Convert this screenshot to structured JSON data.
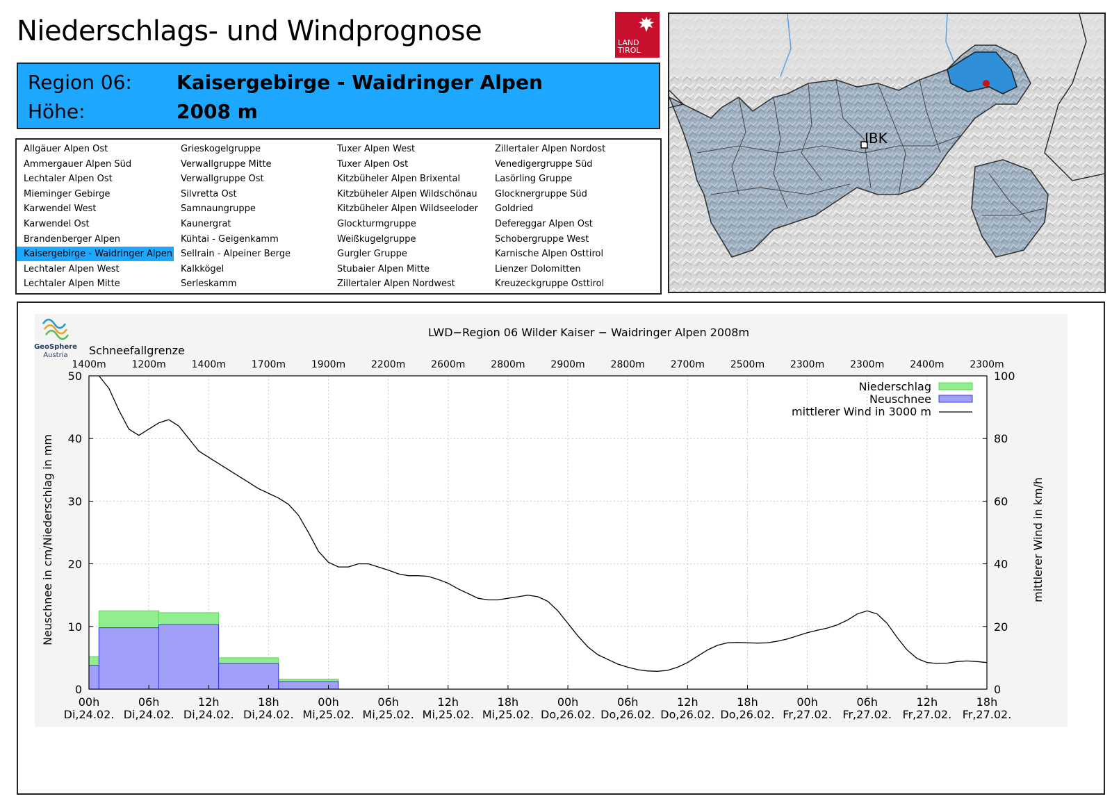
{
  "header": {
    "title": "Niederschlags- und Windprognose",
    "logo_text": [
      "LAND",
      "TIROL"
    ]
  },
  "region": {
    "region_label": "Region 06:",
    "region_value": "Kaisergebirge - Waidringer Alpen",
    "height_label": "Höhe:",
    "height_value": "2008 m"
  },
  "region_list": {
    "columns": [
      [
        "Allgäuer Alpen Ost",
        "Ammergauer Alpen Süd",
        "Lechtaler Alpen Ost",
        "Mieminger Gebirge",
        "Karwendel West",
        "Karwendel Ost",
        "Brandenberger Alpen",
        "Kaisergebirge - Waidringer Alpen",
        "Lechtaler Alpen West",
        "Lechtaler Alpen Mitte"
      ],
      [
        "Grieskogelgruppe",
        "Verwallgruppe Mitte",
        "Verwallgruppe Ost",
        "Silvretta Ost",
        "Samnaungruppe",
        "Kaunergrat",
        "Kühtai - Geigenkamm",
        "Sellrain - Alpeiner Berge",
        "Kalkkögel",
        "Serleskamm"
      ],
      [
        "Tuxer Alpen West",
        "Tuxer Alpen Ost",
        "Kitzbüheler Alpen Brixental",
        "Kitzbüheler Alpen Wildschönau",
        "Kitzbüheler Alpen Wildseeloder",
        "Glockturmgruppe",
        "Weißkugelgruppe",
        "Gurgler Gruppe",
        "Stubaier Alpen Mitte",
        "Zillertaler Alpen Nordwest"
      ],
      [
        "Zillertaler Alpen Nordost",
        "Venedigergruppe Süd",
        "Lasörling Gruppe",
        "Glocknergruppe Süd",
        "Goldried",
        "Defereggar Alpen Ost",
        "Schobergruppe West",
        "Karnische Alpen Osttirol",
        "Lienzer Dolomitten",
        "Kreuzeckgruppe Osttirol"
      ]
    ],
    "selected": "Kaisergebirge - Waidringer Alpen"
  },
  "map": {
    "city_label": "IBK"
  },
  "chart_data": {
    "type": "bar",
    "title": "LWD−Region 06 Wilder Kaiser − Waidringer Alpen 2008m",
    "source": [
      "GeoSphere",
      "Austria"
    ],
    "ylabel": "Neuschnee in cm/Niederschlag in mm",
    "y2label": "mittlerer Wind in km/h",
    "ylim": [
      0,
      50
    ],
    "yticks": [
      0,
      10,
      20,
      30,
      40,
      50
    ],
    "y2lim": [
      0,
      100
    ],
    "y2ticks": [
      0,
      20,
      40,
      60,
      80,
      100
    ],
    "x_hours_range": [
      0,
      90
    ],
    "xticks": [
      {
        "h": 0,
        "time": "00h",
        "date": "Di,24.02."
      },
      {
        "h": 6,
        "time": "06h",
        "date": "Di,24.02."
      },
      {
        "h": 12,
        "time": "12h",
        "date": "Di,24.02."
      },
      {
        "h": 18,
        "time": "18h",
        "date": "Di,24.02."
      },
      {
        "h": 24,
        "time": "00h",
        "date": "Mi,25.02."
      },
      {
        "h": 30,
        "time": "06h",
        "date": "Mi,25.02."
      },
      {
        "h": 36,
        "time": "12h",
        "date": "Mi,25.02."
      },
      {
        "h": 42,
        "time": "18h",
        "date": "Mi,25.02."
      },
      {
        "h": 48,
        "time": "00h",
        "date": "Do,26.02."
      },
      {
        "h": 54,
        "time": "06h",
        "date": "Do,26.02."
      },
      {
        "h": 60,
        "time": "12h",
        "date": "Do,26.02."
      },
      {
        "h": 66,
        "time": "18h",
        "date": "Do,26.02."
      },
      {
        "h": 72,
        "time": "00h",
        "date": "Fr,27.02."
      },
      {
        "h": 78,
        "time": "06h",
        "date": "Fr,27.02."
      },
      {
        "h": 84,
        "time": "12h",
        "date": "Fr,27.02."
      },
      {
        "h": 90,
        "time": "18h",
        "date": "Fr,27.02."
      }
    ],
    "snowline_title": "Schneefallgrenze",
    "snowline": [
      {
        "h": 0,
        "label": "1400m"
      },
      {
        "h": 6,
        "label": "1200m"
      },
      {
        "h": 12,
        "label": "1400m"
      },
      {
        "h": 18,
        "label": "1700m"
      },
      {
        "h": 24,
        "label": "1900m"
      },
      {
        "h": 30,
        "label": "2200m"
      },
      {
        "h": 36,
        "label": "2600m"
      },
      {
        "h": 42,
        "label": "2800m"
      },
      {
        "h": 48,
        "label": "2900m"
      },
      {
        "h": 54,
        "label": "2800m"
      },
      {
        "h": 60,
        "label": "2700m"
      },
      {
        "h": 66,
        "label": "2500m"
      },
      {
        "h": 72,
        "label": "2300m"
      },
      {
        "h": 78,
        "label": "2300m"
      },
      {
        "h": 84,
        "label": "2400m"
      },
      {
        "h": 90,
        "label": "2300m"
      }
    ],
    "series": [
      {
        "name": "Niederschlag",
        "color": "#90ee90",
        "bars": [
          {
            "start": 0,
            "end": 1,
            "value": 5.2
          },
          {
            "start": 1,
            "end": 7,
            "value": 12.5
          },
          {
            "start": 7,
            "end": 13,
            "value": 12.2
          },
          {
            "start": 13,
            "end": 19,
            "value": 5.0
          },
          {
            "start": 19,
            "end": 25,
            "value": 1.6
          }
        ]
      },
      {
        "name": "Neuschnee",
        "color": "#a0a0f8",
        "bars": [
          {
            "start": 0,
            "end": 1,
            "value": 3.8
          },
          {
            "start": 1,
            "end": 7,
            "value": 9.8
          },
          {
            "start": 7,
            "end": 13,
            "value": 10.3
          },
          {
            "start": 13,
            "end": 19,
            "value": 4.1
          },
          {
            "start": 19,
            "end": 25,
            "value": 1.2
          }
        ]
      },
      {
        "name": "mittlerer Wind in 3000 m",
        "color": "#000000",
        "axis": "right",
        "x": [
          1,
          2,
          3,
          4,
          5,
          6,
          7,
          8,
          9,
          10,
          11,
          12,
          13,
          14,
          15,
          16,
          17,
          18,
          19,
          20,
          21,
          22,
          23,
          24,
          25,
          26,
          27,
          28,
          29,
          30,
          31,
          32,
          33,
          34,
          35,
          36,
          37,
          38,
          39,
          40,
          41,
          42,
          43,
          44,
          45,
          46,
          47,
          48,
          49,
          50,
          51,
          52,
          53,
          54,
          55,
          56,
          57,
          58,
          59,
          60,
          61,
          62,
          63,
          64,
          65,
          66,
          67,
          68,
          69,
          70,
          71,
          72,
          73,
          74,
          75,
          76,
          77,
          78,
          79,
          80,
          81,
          82,
          83,
          84,
          85,
          86,
          87,
          88,
          89,
          90
        ],
        "y": [
          100,
          96,
          89,
          83,
          81,
          83,
          85,
          86,
          84,
          80,
          76,
          74,
          72,
          70,
          68,
          66,
          64,
          62.5,
          61,
          59,
          55.5,
          50,
          44,
          40.5,
          39,
          39,
          40,
          40,
          39,
          38,
          36.8,
          36.2,
          36.2,
          36,
          35,
          33.8,
          32,
          30.5,
          29,
          28.5,
          28.5,
          29,
          29.5,
          30,
          29.5,
          28,
          25,
          21,
          17,
          13.5,
          11,
          9.5,
          8,
          7,
          6.2,
          5.8,
          5.7,
          6,
          7,
          8.5,
          10.5,
          12.5,
          14,
          14.8,
          14.9,
          14.8,
          14.7,
          14.8,
          15.3,
          16,
          17,
          18,
          18.8,
          19.5,
          20.5,
          22,
          24,
          25,
          24,
          21,
          16.5,
          12.5,
          9.8,
          8.5,
          8.2,
          8.3,
          8.8,
          9,
          8.8,
          8.5
        ]
      }
    ],
    "legend": "top-right",
    "grid": true
  }
}
